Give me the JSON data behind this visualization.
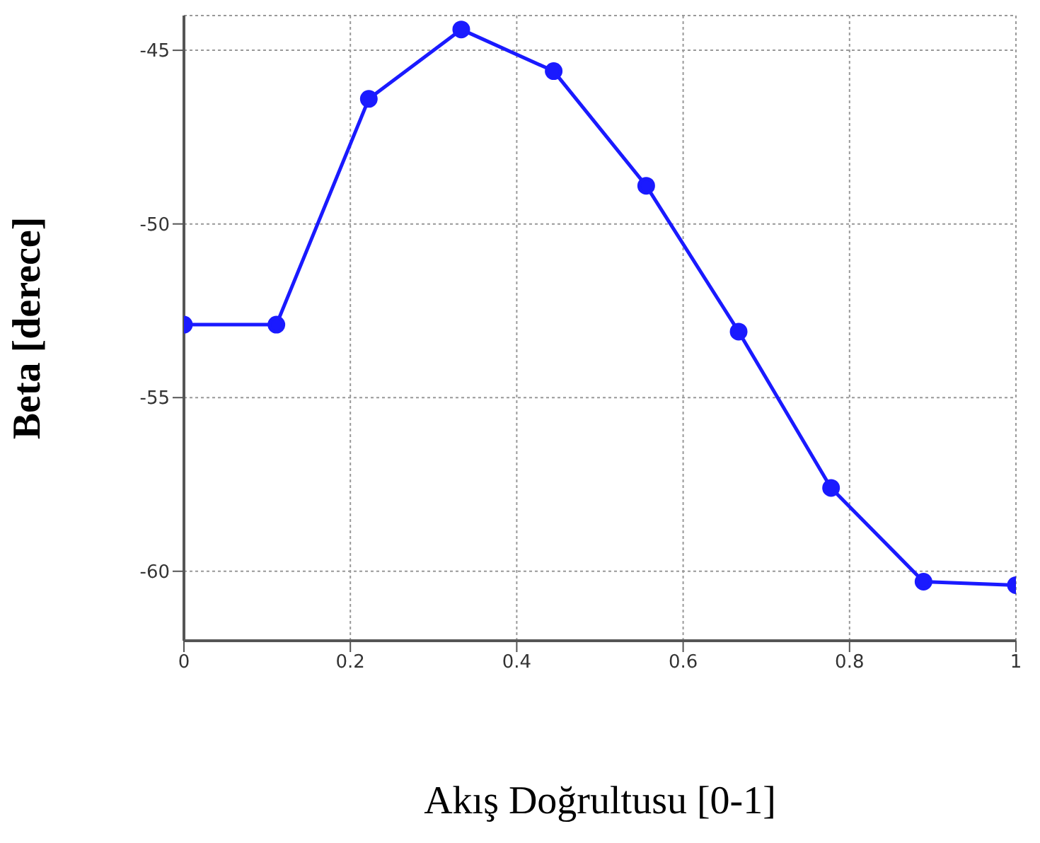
{
  "chart_data": {
    "type": "line",
    "xlabel": "Akış Doğrultusu [0-1]",
    "ylabel": "Beta [derece]",
    "x": [
      0,
      0.1111,
      0.2222,
      0.3333,
      0.4444,
      0.5556,
      0.6667,
      0.7778,
      0.8889,
      1
    ],
    "series": [
      {
        "color": "#1a1aff",
        "values": [
          -52.9,
          -52.9,
          -46.4,
          -44.4,
          -45.6,
          -48.9,
          -53.1,
          -57.6,
          -60.3,
          -60.4
        ]
      }
    ],
    "xlim": [
      0,
      1
    ],
    "xticks": [
      0,
      0.2,
      0.4,
      0.6,
      0.8,
      1
    ],
    "ylim": [
      -62,
      -44
    ],
    "yticks": [
      -45,
      -50,
      -55,
      -60
    ],
    "grid": true,
    "marker": "circle",
    "line_style": "solid",
    "legend": false
  }
}
